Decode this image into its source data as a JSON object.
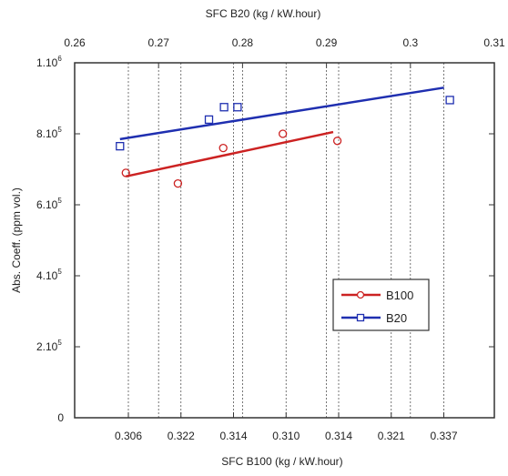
{
  "chart_data": {
    "type": "scatter",
    "x_top_label": "SFC B20 (kg / kW.hour)",
    "x_bottom_label": "SFC B100 (kg / kW.hour)",
    "y_label": "Abs. Coeff. (ppm vol.)",
    "top_axis": {
      "range": [
        0.26,
        0.31
      ],
      "ticks": [
        "0.26",
        "0.27",
        "0.28",
        "0.29",
        "0.3",
        "0.31"
      ]
    },
    "bottom_axis": {
      "tick_labels": [
        "0.306",
        "0.322",
        "0.314",
        "0.310",
        "0.314",
        "0.321",
        "0.337"
      ]
    },
    "y_axis": {
      "range": [
        0,
        1000000
      ],
      "ticks": [
        {
          "value": 0,
          "label": "0"
        },
        {
          "value": 200000,
          "base": "2.10",
          "exp": "5"
        },
        {
          "value": 400000,
          "base": "4.10",
          "exp": "5"
        },
        {
          "value": 600000,
          "base": "6.10",
          "exp": "5"
        },
        {
          "value": 800000,
          "base": "8.10",
          "exp": "5"
        },
        {
          "value": 1000000,
          "base": "1.10",
          "exp": "6"
        }
      ]
    },
    "grid": "vertical dashed",
    "legend_position": "lower-right",
    "series": [
      {
        "name": "B100",
        "color": "#cc2222",
        "marker": "circle",
        "points_x_top_scale": [
          [
            0.2661,
            690000
          ],
          [
            0.2723,
            660000
          ],
          [
            0.2777,
            760000
          ],
          [
            0.2848,
            800000
          ],
          [
            0.2913,
            780000
          ]
        ],
        "fit_line": [
          [
            0.2661,
            680000
          ],
          [
            0.2908,
            805000
          ]
        ]
      },
      {
        "name": "B20",
        "color": "#1f2fb0",
        "marker": "square",
        "points_x_top_scale": [
          [
            0.2654,
            765000
          ],
          [
            0.276,
            840000
          ],
          [
            0.2778,
            875000
          ],
          [
            0.2794,
            875000
          ],
          [
            0.3047,
            895000
          ]
        ],
        "fit_line": [
          [
            0.2654,
            785000
          ],
          [
            0.304,
            930000
          ]
        ]
      }
    ]
  }
}
